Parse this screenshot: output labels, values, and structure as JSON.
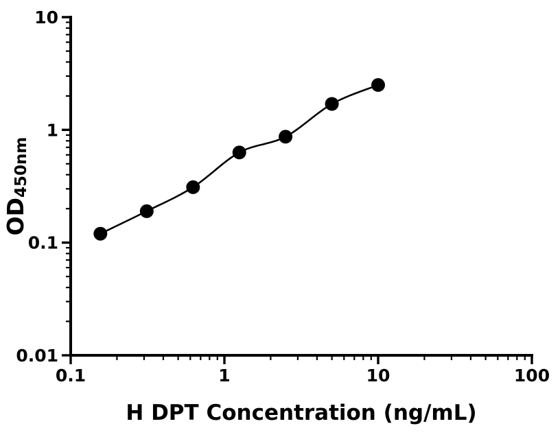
{
  "chart_data": {
    "type": "scatter",
    "title": "",
    "xlabel": "H DPT Concentration (ng/mL)",
    "ylabel_main": "OD",
    "ylabel_sub": "450nm",
    "xscale": "log",
    "yscale": "log",
    "xlim": [
      0.1,
      100
    ],
    "ylim": [
      0.01,
      10
    ],
    "grid": false,
    "legend": null,
    "marker_color": "#000000",
    "line_color": "#000000",
    "axis_color": "#000000",
    "x": [
      0.156,
      0.3125,
      0.625,
      1.25,
      2.5,
      5,
      10
    ],
    "y": [
      0.12,
      0.19,
      0.31,
      0.63,
      0.87,
      1.7,
      2.5
    ],
    "x_ticks": [
      {
        "value": 0.1,
        "label": "0.1"
      },
      {
        "value": 1,
        "label": "1"
      },
      {
        "value": 10,
        "label": "10"
      },
      {
        "value": 100,
        "label": "100"
      }
    ],
    "y_ticks": [
      {
        "value": 0.01,
        "label": "0.01"
      },
      {
        "value": 0.1,
        "label": "0.1"
      },
      {
        "value": 1,
        "label": "1"
      },
      {
        "value": 10,
        "label": "10"
      }
    ]
  }
}
